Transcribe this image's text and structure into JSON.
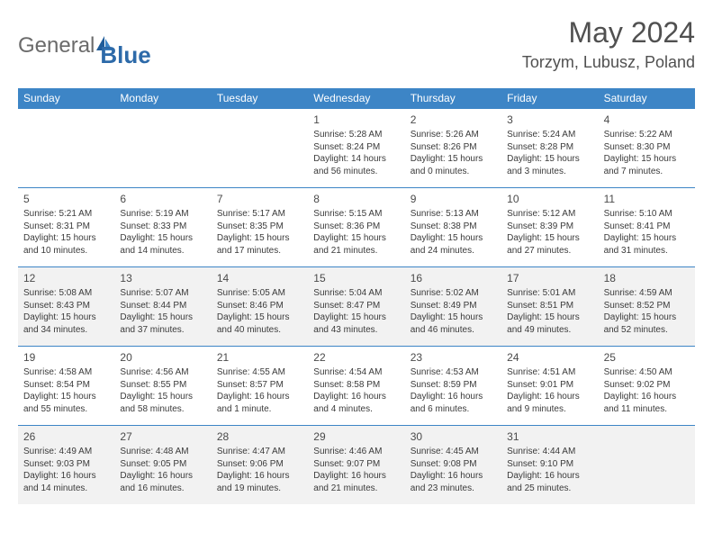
{
  "logo": {
    "part1": "General",
    "part2": "Blue"
  },
  "title": "May 2024",
  "location": "Torzym, Lubusz, Poland",
  "colors": {
    "header_bg": "#3d85c6",
    "shaded_bg": "#f2f2f2",
    "border": "#3d85c6"
  },
  "weekdays": [
    "Sunday",
    "Monday",
    "Tuesday",
    "Wednesday",
    "Thursday",
    "Friday",
    "Saturday"
  ],
  "grid": {
    "rows": 5,
    "cols": 7,
    "shaded_rows": [
      2,
      4
    ],
    "cells": [
      {
        "day": "",
        "sunrise": "",
        "sunset": "",
        "daylight": ""
      },
      {
        "day": "",
        "sunrise": "",
        "sunset": "",
        "daylight": ""
      },
      {
        "day": "",
        "sunrise": "",
        "sunset": "",
        "daylight": ""
      },
      {
        "day": "1",
        "sunrise": "Sunrise: 5:28 AM",
        "sunset": "Sunset: 8:24 PM",
        "daylight": "Daylight: 14 hours and 56 minutes."
      },
      {
        "day": "2",
        "sunrise": "Sunrise: 5:26 AM",
        "sunset": "Sunset: 8:26 PM",
        "daylight": "Daylight: 15 hours and 0 minutes."
      },
      {
        "day": "3",
        "sunrise": "Sunrise: 5:24 AM",
        "sunset": "Sunset: 8:28 PM",
        "daylight": "Daylight: 15 hours and 3 minutes."
      },
      {
        "day": "4",
        "sunrise": "Sunrise: 5:22 AM",
        "sunset": "Sunset: 8:30 PM",
        "daylight": "Daylight: 15 hours and 7 minutes."
      },
      {
        "day": "5",
        "sunrise": "Sunrise: 5:21 AM",
        "sunset": "Sunset: 8:31 PM",
        "daylight": "Daylight: 15 hours and 10 minutes."
      },
      {
        "day": "6",
        "sunrise": "Sunrise: 5:19 AM",
        "sunset": "Sunset: 8:33 PM",
        "daylight": "Daylight: 15 hours and 14 minutes."
      },
      {
        "day": "7",
        "sunrise": "Sunrise: 5:17 AM",
        "sunset": "Sunset: 8:35 PM",
        "daylight": "Daylight: 15 hours and 17 minutes."
      },
      {
        "day": "8",
        "sunrise": "Sunrise: 5:15 AM",
        "sunset": "Sunset: 8:36 PM",
        "daylight": "Daylight: 15 hours and 21 minutes."
      },
      {
        "day": "9",
        "sunrise": "Sunrise: 5:13 AM",
        "sunset": "Sunset: 8:38 PM",
        "daylight": "Daylight: 15 hours and 24 minutes."
      },
      {
        "day": "10",
        "sunrise": "Sunrise: 5:12 AM",
        "sunset": "Sunset: 8:39 PM",
        "daylight": "Daylight: 15 hours and 27 minutes."
      },
      {
        "day": "11",
        "sunrise": "Sunrise: 5:10 AM",
        "sunset": "Sunset: 8:41 PM",
        "daylight": "Daylight: 15 hours and 31 minutes."
      },
      {
        "day": "12",
        "sunrise": "Sunrise: 5:08 AM",
        "sunset": "Sunset: 8:43 PM",
        "daylight": "Daylight: 15 hours and 34 minutes."
      },
      {
        "day": "13",
        "sunrise": "Sunrise: 5:07 AM",
        "sunset": "Sunset: 8:44 PM",
        "daylight": "Daylight: 15 hours and 37 minutes."
      },
      {
        "day": "14",
        "sunrise": "Sunrise: 5:05 AM",
        "sunset": "Sunset: 8:46 PM",
        "daylight": "Daylight: 15 hours and 40 minutes."
      },
      {
        "day": "15",
        "sunrise": "Sunrise: 5:04 AM",
        "sunset": "Sunset: 8:47 PM",
        "daylight": "Daylight: 15 hours and 43 minutes."
      },
      {
        "day": "16",
        "sunrise": "Sunrise: 5:02 AM",
        "sunset": "Sunset: 8:49 PM",
        "daylight": "Daylight: 15 hours and 46 minutes."
      },
      {
        "day": "17",
        "sunrise": "Sunrise: 5:01 AM",
        "sunset": "Sunset: 8:51 PM",
        "daylight": "Daylight: 15 hours and 49 minutes."
      },
      {
        "day": "18",
        "sunrise": "Sunrise: 4:59 AM",
        "sunset": "Sunset: 8:52 PM",
        "daylight": "Daylight: 15 hours and 52 minutes."
      },
      {
        "day": "19",
        "sunrise": "Sunrise: 4:58 AM",
        "sunset": "Sunset: 8:54 PM",
        "daylight": "Daylight: 15 hours and 55 minutes."
      },
      {
        "day": "20",
        "sunrise": "Sunrise: 4:56 AM",
        "sunset": "Sunset: 8:55 PM",
        "daylight": "Daylight: 15 hours and 58 minutes."
      },
      {
        "day": "21",
        "sunrise": "Sunrise: 4:55 AM",
        "sunset": "Sunset: 8:57 PM",
        "daylight": "Daylight: 16 hours and 1 minute."
      },
      {
        "day": "22",
        "sunrise": "Sunrise: 4:54 AM",
        "sunset": "Sunset: 8:58 PM",
        "daylight": "Daylight: 16 hours and 4 minutes."
      },
      {
        "day": "23",
        "sunrise": "Sunrise: 4:53 AM",
        "sunset": "Sunset: 8:59 PM",
        "daylight": "Daylight: 16 hours and 6 minutes."
      },
      {
        "day": "24",
        "sunrise": "Sunrise: 4:51 AM",
        "sunset": "Sunset: 9:01 PM",
        "daylight": "Daylight: 16 hours and 9 minutes."
      },
      {
        "day": "25",
        "sunrise": "Sunrise: 4:50 AM",
        "sunset": "Sunset: 9:02 PM",
        "daylight": "Daylight: 16 hours and 11 minutes."
      },
      {
        "day": "26",
        "sunrise": "Sunrise: 4:49 AM",
        "sunset": "Sunset: 9:03 PM",
        "daylight": "Daylight: 16 hours and 14 minutes."
      },
      {
        "day": "27",
        "sunrise": "Sunrise: 4:48 AM",
        "sunset": "Sunset: 9:05 PM",
        "daylight": "Daylight: 16 hours and 16 minutes."
      },
      {
        "day": "28",
        "sunrise": "Sunrise: 4:47 AM",
        "sunset": "Sunset: 9:06 PM",
        "daylight": "Daylight: 16 hours and 19 minutes."
      },
      {
        "day": "29",
        "sunrise": "Sunrise: 4:46 AM",
        "sunset": "Sunset: 9:07 PM",
        "daylight": "Daylight: 16 hours and 21 minutes."
      },
      {
        "day": "30",
        "sunrise": "Sunrise: 4:45 AM",
        "sunset": "Sunset: 9:08 PM",
        "daylight": "Daylight: 16 hours and 23 minutes."
      },
      {
        "day": "31",
        "sunrise": "Sunrise: 4:44 AM",
        "sunset": "Sunset: 9:10 PM",
        "daylight": "Daylight: 16 hours and 25 minutes."
      },
      {
        "day": "",
        "sunrise": "",
        "sunset": "",
        "daylight": ""
      }
    ]
  }
}
